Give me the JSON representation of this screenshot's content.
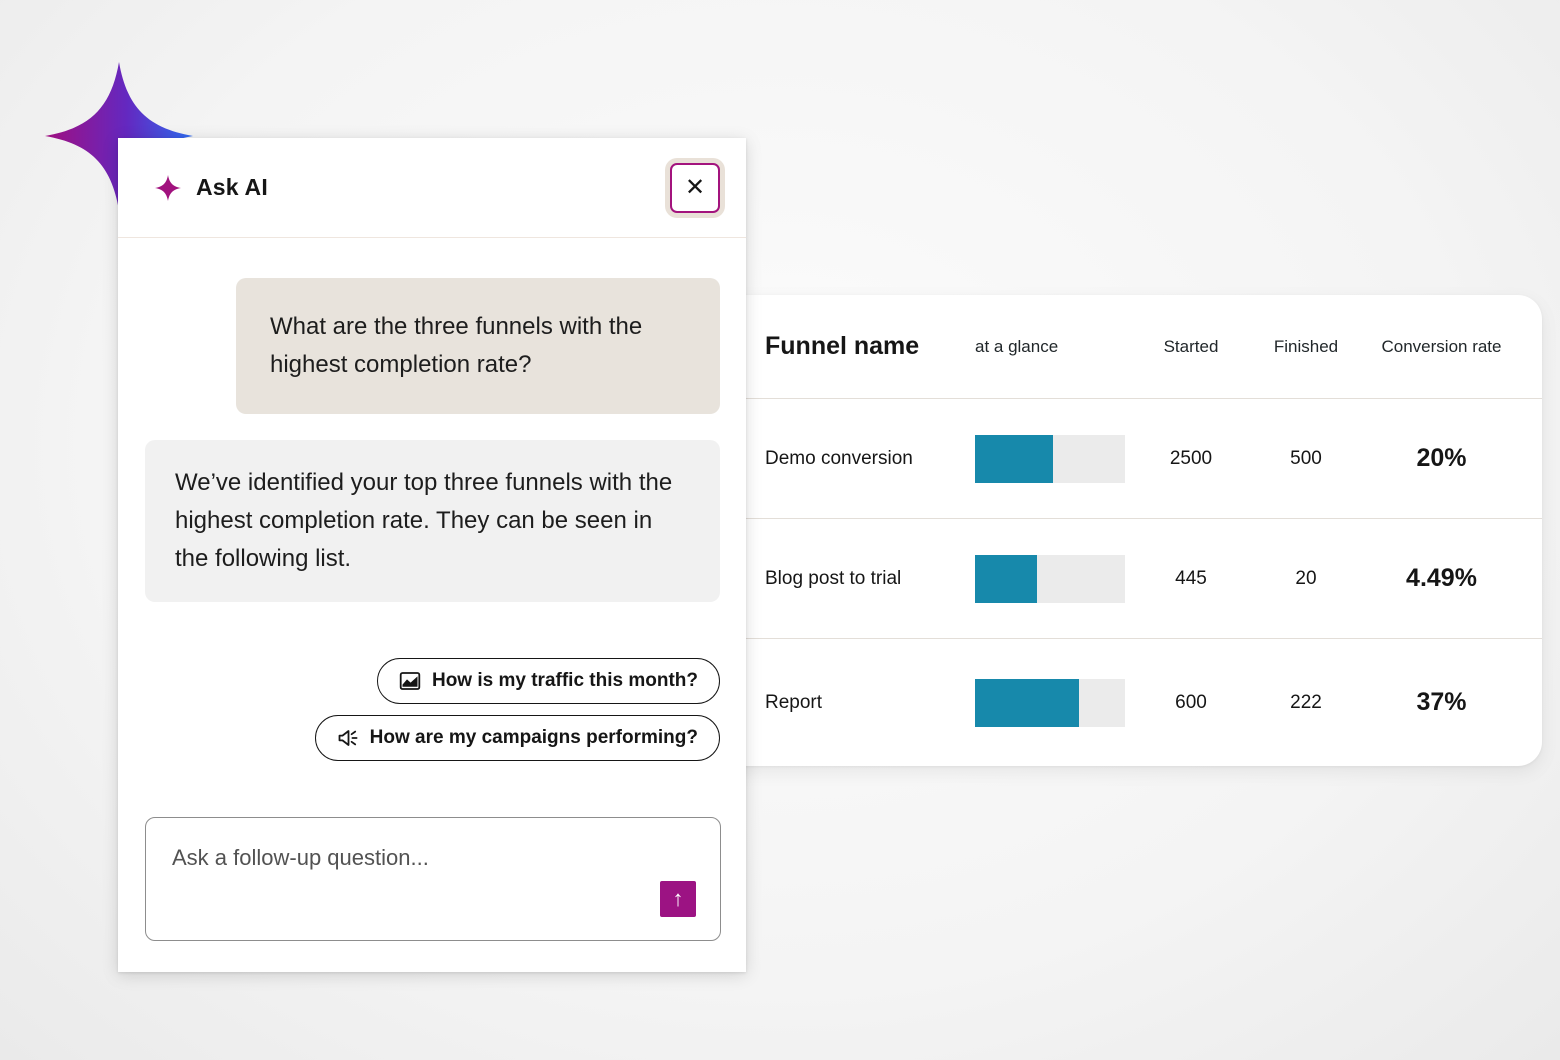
{
  "ask_ai_panel": {
    "header": {
      "title": "Ask AI",
      "close_icon": "✕"
    },
    "conversation": {
      "user_message": "What are the three funnels with the highest completion rate?",
      "ai_message": "We’ve identified your top three funnels with the highest completion rate. They can be seen in the following list."
    },
    "suggestions": [
      {
        "icon": "area-chart-icon",
        "label": "How is my traffic this month?"
      },
      {
        "icon": "megaphone-icon",
        "label": "How are my campaigns performing?"
      }
    ],
    "composer": {
      "placeholder": "Ask a follow-up question...",
      "send_icon": "↑"
    }
  },
  "funnel_table": {
    "columns": {
      "name": "Funnel name",
      "glance": "at a glance",
      "started": "Started",
      "finished": "Finished",
      "conversion": "Conversion rate"
    },
    "rows": [
      {
        "name": "Demo conversion",
        "bar_percent": 52,
        "started": "2500",
        "finished": "500",
        "conversion": "20%"
      },
      {
        "name": "Blog post to trial",
        "bar_percent": 41,
        "started": "445",
        "finished": "20",
        "conversion": "4.49%"
      },
      {
        "name": "Report",
        "bar_percent": 69,
        "started": "600",
        "finished": "222",
        "conversion": "37%"
      }
    ]
  },
  "colors": {
    "accent_magenta": "#9c1383",
    "close_border": "#a3137d",
    "bar_fill": "#1789ab",
    "bar_track": "#ebebeb",
    "user_bubble": "#e8e3dc",
    "ai_bubble": "#f1f1f1",
    "sparkle_gradient": [
      "#a00f80",
      "#6428c0",
      "#2e6cf2"
    ]
  }
}
